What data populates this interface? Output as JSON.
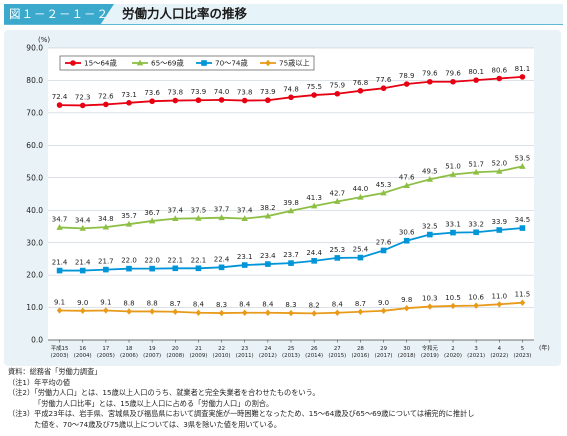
{
  "header": {
    "figure_label": "図１－２－１－２",
    "title": "労働力人口比率の推移"
  },
  "chart_data": {
    "type": "line",
    "unit_label": "(%)",
    "x_unit_label": "(年)",
    "ylim": [
      0,
      90
    ],
    "yticks": [
      "0.0",
      "10.0",
      "20.0",
      "30.0",
      "40.0",
      "50.0",
      "60.0",
      "70.0",
      "80.0",
      "90.0"
    ],
    "grid": true,
    "legend_position": "top-left",
    "categories": [
      [
        "平成15",
        "(2003)"
      ],
      [
        "16",
        "(2004)"
      ],
      [
        "17",
        "(2005)"
      ],
      [
        "18",
        "(2006)"
      ],
      [
        "19",
        "(2007)"
      ],
      [
        "20",
        "(2008)"
      ],
      [
        "21",
        "(2009)"
      ],
      [
        "22",
        "(2010)"
      ],
      [
        "23",
        "(2011)"
      ],
      [
        "24",
        "(2012)"
      ],
      [
        "25",
        "(2013)"
      ],
      [
        "26",
        "(2014)"
      ],
      [
        "27",
        "(2015)"
      ],
      [
        "28",
        "(2016)"
      ],
      [
        "29",
        "(2017)"
      ],
      [
        "30",
        "(2018)"
      ],
      [
        "令和元",
        "(2019)"
      ],
      [
        "2",
        "(2020)"
      ],
      [
        "3",
        "(2021)"
      ],
      [
        "4",
        "(2022)"
      ],
      [
        "5",
        "(2023)"
      ]
    ],
    "series": [
      {
        "name": "15～64歳",
        "color": "#e60012",
        "marker": "circle",
        "values": [
          72.4,
          72.3,
          72.6,
          73.1,
          73.6,
          73.8,
          73.9,
          74.0,
          73.8,
          73.9,
          74.8,
          75.5,
          75.9,
          76.8,
          77.6,
          78.9,
          79.6,
          79.6,
          80.1,
          80.6,
          81.1
        ]
      },
      {
        "name": "65～69歳",
        "color": "#8dbf45",
        "marker": "triangle",
        "values": [
          34.7,
          34.4,
          34.8,
          35.7,
          36.7,
          37.4,
          37.5,
          37.7,
          37.4,
          38.2,
          39.8,
          41.3,
          42.7,
          44.0,
          45.3,
          47.6,
          49.5,
          51.0,
          51.7,
          52.0,
          53.5
        ]
      },
      {
        "name": "70～74歳",
        "color": "#0095d9",
        "marker": "square",
        "values": [
          21.4,
          21.4,
          21.7,
          22.0,
          22.0,
          22.1,
          22.1,
          22.4,
          23.1,
          23.4,
          23.7,
          24.4,
          25.3,
          25.4,
          27.6,
          30.6,
          32.5,
          33.1,
          33.2,
          33.9,
          34.5
        ]
      },
      {
        "name": "75歳以上",
        "color": "#e89b1b",
        "marker": "diamond",
        "values": [
          9.1,
          9.0,
          9.1,
          8.8,
          8.8,
          8.7,
          8.4,
          8.3,
          8.4,
          8.4,
          8.3,
          8.2,
          8.4,
          8.7,
          9.0,
          9.8,
          10.3,
          10.5,
          10.6,
          11.0,
          11.5
        ]
      }
    ]
  },
  "notes": [
    "資料：総務省「労働力調査」",
    "（注1）年平均の値",
    "（注2）「労働力人口」とは、15歳以上人口のうち、就業者と完全失業者を合わせたものをいう。",
    "「労働力人口比率」とは、15歳以上人口に占める「労働力人口」の割合。",
    "（注3）平成23年は、岩手県、宮城県及び福島県において調査実施が一時困難となったため、15～64歳及び65～69歳については補完的に推計し",
    "た値を、70～74歳及び75歳以上については、3県を除いた値を用いている。"
  ]
}
